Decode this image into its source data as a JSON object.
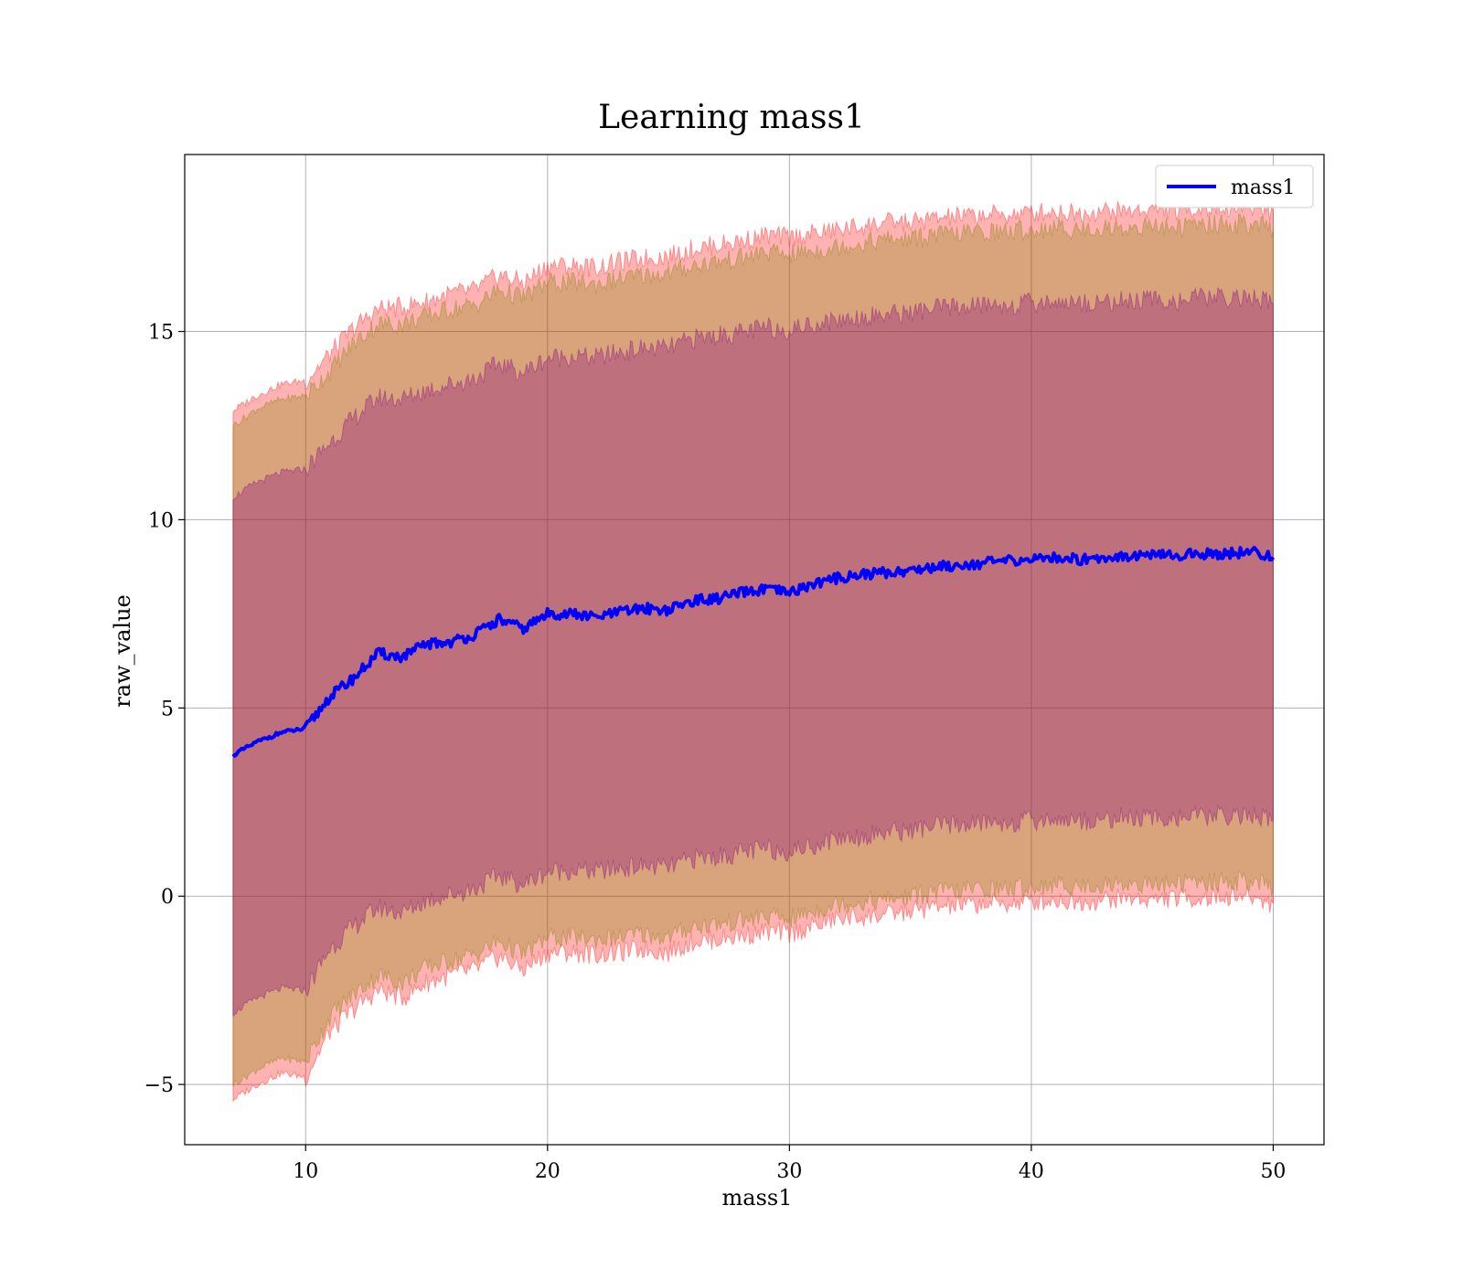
{
  "chart_data": {
    "type": "line",
    "title": "Learning mass1",
    "xlabel": "mass1",
    "ylabel": "raw_value",
    "xlim": [
      5,
      52.1
    ],
    "ylim": [
      -6.6,
      19.7
    ],
    "xticks": [
      10,
      20,
      30,
      40,
      50
    ],
    "yticks": [
      -5,
      0,
      5,
      10,
      15
    ],
    "xtick_labels": [
      "10",
      "20",
      "30",
      "40",
      "50"
    ],
    "ytick_labels": [
      "−5",
      "0",
      "5",
      "10",
      "15"
    ],
    "grid": true,
    "legend_placement": "top-right",
    "x": [
      7,
      8,
      9,
      10,
      11,
      12,
      13,
      14,
      15,
      16,
      17,
      18,
      19,
      20,
      21,
      22,
      23,
      24,
      25,
      26,
      27,
      28,
      29,
      30,
      31,
      32,
      33,
      34,
      35,
      36,
      37,
      38,
      39,
      40,
      41,
      42,
      43,
      44,
      45,
      46,
      47,
      48,
      49,
      50
    ],
    "series": [
      {
        "name": "mass1",
        "color": "#0000ff",
        "values": [
          3.75,
          4.1,
          4.35,
          4.45,
          5.3,
          5.8,
          6.45,
          6.35,
          6.7,
          6.75,
          6.95,
          7.35,
          7.1,
          7.5,
          7.5,
          7.4,
          7.55,
          7.65,
          7.6,
          7.85,
          7.9,
          8.05,
          8.15,
          8.05,
          8.3,
          8.45,
          8.55,
          8.6,
          8.65,
          8.75,
          8.8,
          8.85,
          8.9,
          8.95,
          9.0,
          8.95,
          9.0,
          9.05,
          9.05,
          9.05,
          9.1,
          9.1,
          9.15,
          9.0
        ]
      }
    ],
    "bands": [
      {
        "color": "#ff0000",
        "opacity": 0.3,
        "upper": [
          12.9,
          13.3,
          13.6,
          13.7,
          14.4,
          15.1,
          15.6,
          15.65,
          15.8,
          16.0,
          16.1,
          16.5,
          16.3,
          16.75,
          16.75,
          16.7,
          16.85,
          16.95,
          17.0,
          17.2,
          17.3,
          17.4,
          17.55,
          17.5,
          17.6,
          17.7,
          17.8,
          17.9,
          17.9,
          18.0,
          18.05,
          18.1,
          18.1,
          18.15,
          18.2,
          18.15,
          18.2,
          18.2,
          18.25,
          18.2,
          18.3,
          18.3,
          18.3,
          18.2
        ],
        "lower": [
          -5.4,
          -5.0,
          -4.7,
          -4.8,
          -3.6,
          -3.0,
          -2.5,
          -2.7,
          -2.3,
          -2.1,
          -1.95,
          -1.6,
          -1.95,
          -1.5,
          -1.5,
          -1.55,
          -1.5,
          -1.4,
          -1.5,
          -1.2,
          -1.15,
          -1.05,
          -0.95,
          -1.0,
          -0.8,
          -0.6,
          -0.55,
          -0.5,
          -0.4,
          -0.3,
          -0.25,
          -0.2,
          -0.2,
          -0.15,
          -0.1,
          -0.15,
          -0.1,
          -0.05,
          -0.1,
          -0.05,
          -0.05,
          0.0,
          0.0,
          -0.2
        ]
      },
      {
        "color": "#808000",
        "opacity": 0.3,
        "upper": [
          12.5,
          12.95,
          13.2,
          13.3,
          13.95,
          14.7,
          15.2,
          15.2,
          15.4,
          15.6,
          15.7,
          16.1,
          15.9,
          16.3,
          16.3,
          16.25,
          16.4,
          16.5,
          16.55,
          16.75,
          16.85,
          16.95,
          17.1,
          17.05,
          17.15,
          17.25,
          17.35,
          17.45,
          17.45,
          17.55,
          17.6,
          17.65,
          17.65,
          17.7,
          17.75,
          17.7,
          17.75,
          17.75,
          17.8,
          17.75,
          17.85,
          17.85,
          17.85,
          17.7
        ],
        "lower": [
          -5.0,
          -4.6,
          -4.3,
          -4.4,
          -3.2,
          -2.6,
          -2.1,
          -2.3,
          -1.9,
          -1.7,
          -1.55,
          -1.2,
          -1.55,
          -1.1,
          -1.1,
          -1.15,
          -1.1,
          -1.0,
          -1.1,
          -0.8,
          -0.75,
          -0.65,
          -0.55,
          -0.6,
          -0.4,
          -0.2,
          -0.15,
          -0.1,
          0.0,
          0.1,
          0.15,
          0.2,
          0.2,
          0.25,
          0.3,
          0.25,
          0.3,
          0.35,
          0.3,
          0.35,
          0.35,
          0.4,
          0.4,
          0.2
        ]
      },
      {
        "color": "#800080",
        "opacity": 0.3,
        "upper": [
          10.6,
          11.0,
          11.25,
          11.35,
          12.05,
          12.7,
          13.25,
          13.2,
          13.45,
          13.6,
          13.75,
          14.15,
          13.9,
          14.3,
          14.35,
          14.3,
          14.45,
          14.55,
          14.55,
          14.8,
          14.9,
          14.95,
          15.1,
          15.05,
          15.2,
          15.3,
          15.4,
          15.45,
          15.5,
          15.6,
          15.65,
          15.7,
          15.7,
          15.75,
          15.8,
          15.75,
          15.8,
          15.8,
          15.85,
          15.8,
          15.9,
          15.9,
          15.9,
          15.75
        ],
        "lower": [
          -3.1,
          -2.7,
          -2.45,
          -2.5,
          -1.4,
          -0.8,
          -0.3,
          -0.45,
          -0.1,
          0.05,
          0.2,
          0.55,
          0.3,
          0.65,
          0.7,
          0.65,
          0.75,
          0.8,
          0.75,
          1.0,
          1.05,
          1.15,
          1.25,
          1.2,
          1.35,
          1.55,
          1.6,
          1.7,
          1.75,
          1.85,
          1.9,
          1.95,
          1.95,
          2.0,
          2.05,
          2.0,
          2.05,
          2.1,
          2.05,
          2.1,
          2.1,
          2.15,
          2.15,
          2.0
        ]
      }
    ]
  }
}
